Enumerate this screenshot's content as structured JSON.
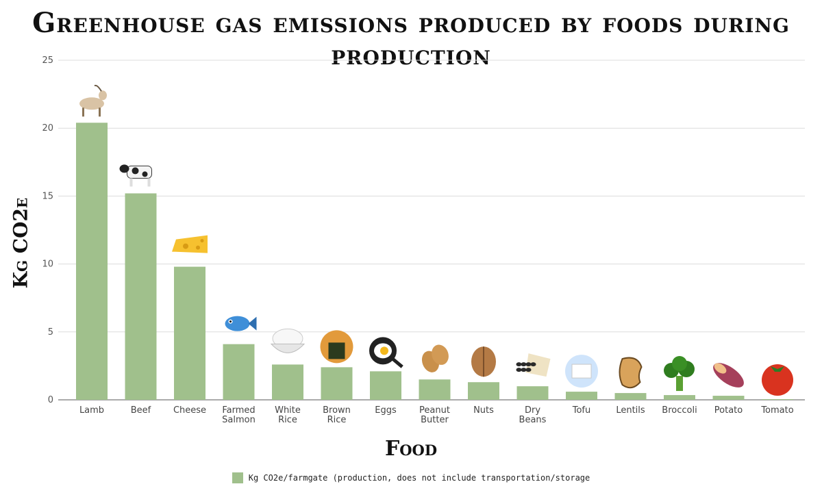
{
  "chart_data": {
    "type": "bar",
    "title": "Greenhouse gas emissions produced by foods during production",
    "xlabel": "Food",
    "ylabel": "Kg CO2e",
    "ylim": [
      0,
      25
    ],
    "yticks": [
      0,
      5,
      10,
      15,
      20,
      25
    ],
    "grid": true,
    "legend_position": "bottom",
    "bar_color": "#a0c08c",
    "categories": [
      "Lamb",
      "Beef",
      "Cheese",
      "Farmed Salmon",
      "White Rice",
      "Brown Rice",
      "Eggs",
      "Peanut Butter",
      "Nuts",
      "Dry Beans",
      "Tofu",
      "Lentils",
      "Broccoli",
      "Potato",
      "Tomato"
    ],
    "icons": [
      "goat-icon",
      "cow-icon",
      "cheese-icon",
      "fish-icon",
      "rice-bowl-icon",
      "rice-cracker-icon",
      "fried-egg-icon",
      "peanut-icon",
      "walnut-icon",
      "beans-icon",
      "tofu-icon",
      "lentil-icon",
      "broccoli-icon",
      "sweet-potato-icon",
      "tomato-icon"
    ],
    "series": [
      {
        "name": "Kg CO2e/farmgate (production, does not include transportation/storage",
        "values": [
          20.4,
          15.2,
          9.8,
          4.1,
          2.6,
          2.4,
          2.1,
          1.5,
          1.3,
          1.0,
          0.6,
          0.5,
          0.35,
          0.3,
          0.05
        ]
      }
    ]
  }
}
